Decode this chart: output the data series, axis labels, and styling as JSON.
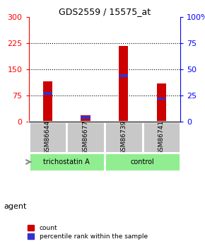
{
  "title": "GDS2559 / 15575_at",
  "samples": [
    "GSM86644",
    "GSM86677",
    "GSM86739",
    "GSM86741"
  ],
  "count_values": [
    115,
    18,
    218,
    110
  ],
  "percentile_values": [
    27,
    4,
    44,
    22
  ],
  "groups": [
    "trichostatin A",
    "trichostatin A",
    "control",
    "control"
  ],
  "bar_color_red": "#CC0000",
  "bar_color_blue": "#3333CC",
  "ylim_left": [
    0,
    300
  ],
  "ylim_right": [
    0,
    100
  ],
  "yticks_left": [
    0,
    75,
    150,
    225,
    300
  ],
  "yticks_right": [
    0,
    25,
    50,
    75,
    100
  ],
  "ytick_labels_right": [
    "0",
    "25",
    "50",
    "75",
    "100%"
  ],
  "gridlines": [
    75,
    150,
    225
  ],
  "agent_label": "agent",
  "legend_count": "count",
  "legend_percentile": "percentile rank within the sample",
  "sample_bg_color": "#C8C8C8",
  "group_bg_color": "#90EE90",
  "groups_info": [
    [
      0,
      1,
      "trichostatin A"
    ],
    [
      2,
      3,
      "control"
    ]
  ]
}
